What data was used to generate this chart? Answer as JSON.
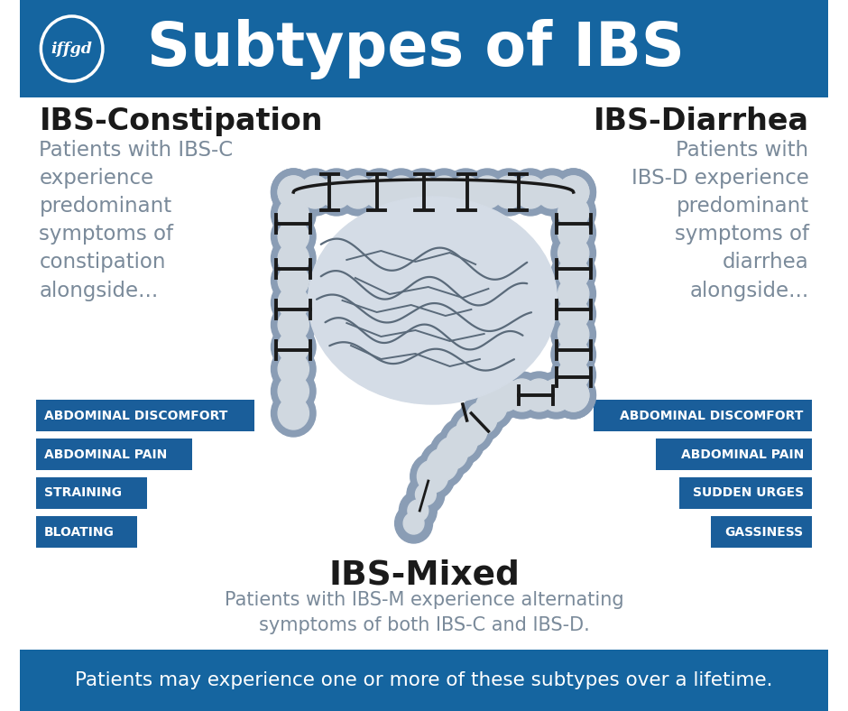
{
  "bg_color": "#ffffff",
  "header_color": "#1565a0",
  "footer_color": "#1565a0",
  "button_color": "#1a5e9a",
  "title": "Subtypes of IBS",
  "logo_text": "iffgd",
  "footer_text": "Patients may experience one or more of these subtypes over a lifetime.",
  "left_title": "IBS-Constipation",
  "left_desc": "Patients with IBS-C\nexperience\npredominant\nsymptoms of\nconstipation\nalongside...",
  "left_buttons": [
    "ABDOMINAL DISCOMFORT",
    "ABDOMINAL PAIN",
    "STRAINING",
    "BLOATING"
  ],
  "right_title": "IBS-Diarrhea",
  "right_desc": "    Patients with\nIBS-D experience\npredominant\nsymptoms of\ndiarrhea\nalongside...",
  "right_buttons": [
    "ABDOMINAL DISCOMFORT",
    "ABDOMINAL PAIN",
    "SUDDEN URGES",
    "GASSINESS"
  ],
  "center_title": "IBS-Mixed",
  "center_desc": "Patients with IBS-M experience alternating\nsymptoms of both IBS-C and IBS-D.",
  "text_color_dark": "#1a1a1a",
  "text_color_gray": "#7a8a9a",
  "colon_blob": "#8a9db5",
  "colon_inner": "#d0d8e0",
  "colon_line": "#1a1a1a",
  "small_int_line": "#555566"
}
